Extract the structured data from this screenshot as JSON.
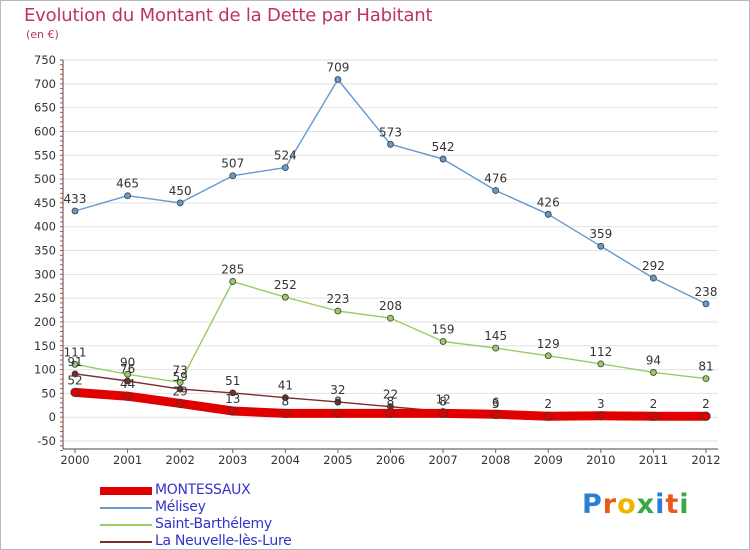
{
  "title": "Evolution du Montant de la Dette par Habitant",
  "subtitle": "(en €)",
  "logo": {
    "text": "Proxiti",
    "letter_colors": [
      "#2a7fd4",
      "#e85a1c",
      "#f0b400",
      "#39a845",
      "#2a7fd4",
      "#e85a1c",
      "#39a845"
    ]
  },
  "chart_data": {
    "type": "line",
    "x": [
      "2000",
      "2001",
      "2002",
      "2003",
      "2004",
      "2005",
      "2006",
      "2007",
      "2008",
      "2009",
      "2010",
      "2011",
      "2012"
    ],
    "ylim": [
      -50,
      750
    ],
    "y_ticks": [
      "-50",
      "0",
      "50",
      "100",
      "150",
      "200",
      "250",
      "300",
      "350",
      "400",
      "450",
      "500",
      "550",
      "600",
      "650",
      "700",
      "750"
    ],
    "grid": "horizontal",
    "legend_position": "bottom-left",
    "series": [
      {
        "name": "MONTESSAUX",
        "color": "#e00000",
        "values": [
          52,
          44,
          29,
          13,
          8,
          8,
          8,
          8,
          6,
          2,
          3,
          2,
          2
        ],
        "labels": [
          "52",
          "44",
          "29",
          "13",
          "8",
          "8",
          "8",
          "8",
          "6",
          "2",
          "3",
          "2",
          "2"
        ]
      },
      {
        "name": "Mélisey",
        "color": "#6699cc",
        "values": [
          433,
          465,
          450,
          507,
          524,
          709,
          573,
          542,
          476,
          426,
          359,
          292,
          238
        ],
        "labels": [
          "433",
          "465",
          "450",
          "507",
          "524",
          "709",
          "573",
          "542",
          "476",
          "426",
          "359",
          "292",
          "238"
        ]
      },
      {
        "name": "Saint-Barthélemy",
        "color": "#99cc66",
        "values": [
          111,
          90,
          73,
          285,
          252,
          223,
          208,
          159,
          145,
          129,
          112,
          94,
          81
        ],
        "labels": [
          "111",
          "90",
          "73",
          "285",
          "252",
          "223",
          "208",
          "159",
          "145",
          "129",
          "112",
          "94",
          "81"
        ]
      },
      {
        "name": "La Neuvelle-lès-Lure",
        "color": "#7a2c2c",
        "values": [
          91,
          76,
          59,
          51,
          41,
          32,
          22,
          12,
          3,
          null,
          null,
          null,
          null
        ],
        "labels": [
          "91",
          "76",
          "59",
          "51",
          "41",
          "32",
          "22",
          "12",
          "3",
          "",
          "",
          "",
          ""
        ]
      }
    ]
  }
}
